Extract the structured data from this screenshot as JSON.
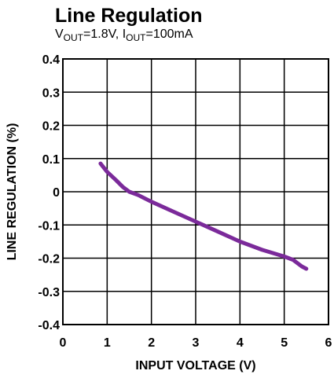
{
  "chart_data": {
    "type": "line",
    "title": "Line Regulation",
    "subtitle_parts": [
      {
        "text": "V",
        "sub": false
      },
      {
        "text": "OUT",
        "sub": true
      },
      {
        "text": "=1.8V, I",
        "sub": false
      },
      {
        "text": "OUT",
        "sub": true
      },
      {
        "text": "=100mA",
        "sub": false
      }
    ],
    "xlabel": "INPUT VOLTAGE (V)",
    "ylabel": "LINE REGULATION (%)",
    "xlim": [
      0,
      6
    ],
    "ylim": [
      -0.4,
      0.4
    ],
    "x_ticks": [
      "0",
      "1",
      "2",
      "3",
      "4",
      "5",
      "6"
    ],
    "y_ticks": [
      "0.4",
      "0.3",
      "0.2",
      "0.1",
      "0",
      "-0.1",
      "-0.2",
      "-0.3",
      "-0.4"
    ],
    "grid": true,
    "line_color": "#7b2a9a",
    "series": [
      {
        "x": [
          0.85,
          1.0,
          1.2,
          1.35,
          1.5,
          1.7,
          2.0,
          2.5,
          3.0,
          3.5,
          4.0,
          4.5,
          5.0,
          5.2,
          5.4,
          5.5
        ],
        "y": [
          0.085,
          0.06,
          0.035,
          0.015,
          0.0,
          -0.01,
          -0.03,
          -0.06,
          -0.09,
          -0.12,
          -0.15,
          -0.175,
          -0.195,
          -0.205,
          -0.225,
          -0.232
        ]
      }
    ]
  }
}
